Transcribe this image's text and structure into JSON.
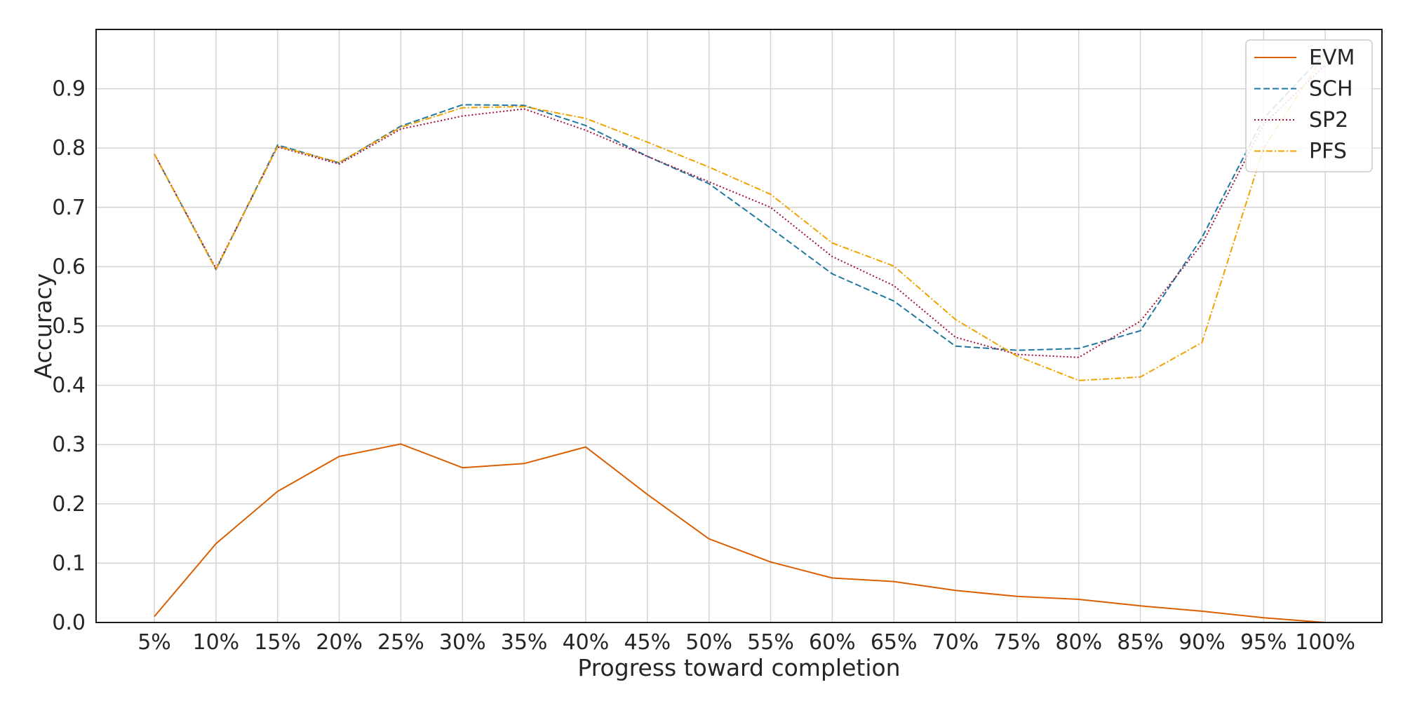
{
  "chart_data": {
    "type": "line",
    "title": "",
    "xlabel": "Progress toward completion",
    "ylabel": "Accuracy",
    "categories": [
      "5%",
      "10%",
      "15%",
      "20%",
      "25%",
      "30%",
      "35%",
      "40%",
      "45%",
      "50%",
      "55%",
      "60%",
      "65%",
      "70%",
      "75%",
      "80%",
      "85%",
      "90%",
      "95%",
      "100%"
    ],
    "yticks": [
      "0.0",
      "0.1",
      "0.2",
      "0.3",
      "0.4",
      "0.5",
      "0.6",
      "0.7",
      "0.8",
      "0.9"
    ],
    "ylim": [
      0,
      1.0
    ],
    "grid": true,
    "legend_position": "top-right",
    "series": [
      {
        "name": "EVM",
        "color": "#d95f02",
        "line_style": "solid",
        "values": [
          0.01,
          0.133,
          0.221,
          0.28,
          0.301,
          0.261,
          0.268,
          0.296,
          0.216,
          0.141,
          0.102,
          0.075,
          0.069,
          0.054,
          0.044,
          0.039,
          0.028,
          0.019,
          0.008,
          0.0
        ]
      },
      {
        "name": "SCH",
        "color": "#1f78a0",
        "line_style": "dashed",
        "values": [
          0.79,
          0.595,
          0.805,
          0.775,
          0.837,
          0.873,
          0.872,
          0.838,
          0.786,
          0.74,
          0.665,
          0.588,
          0.542,
          0.466,
          0.459,
          0.462,
          0.492,
          0.649,
          0.85,
          0.96
        ]
      },
      {
        "name": "SP2",
        "color": "#a50f3c",
        "line_style": "dotted",
        "values": [
          0.79,
          0.597,
          0.802,
          0.773,
          0.832,
          0.854,
          0.866,
          0.83,
          0.786,
          0.743,
          0.7,
          0.617,
          0.568,
          0.481,
          0.452,
          0.447,
          0.508,
          0.638,
          0.84,
          0.94
        ]
      },
      {
        "name": "PFS",
        "color": "#f0a202",
        "line_style": "dashdot",
        "values": [
          0.79,
          0.595,
          0.803,
          0.776,
          0.835,
          0.868,
          0.87,
          0.85,
          0.81,
          0.768,
          0.722,
          0.64,
          0.601,
          0.511,
          0.449,
          0.408,
          0.414,
          0.472,
          0.8,
          0.96
        ]
      }
    ]
  }
}
